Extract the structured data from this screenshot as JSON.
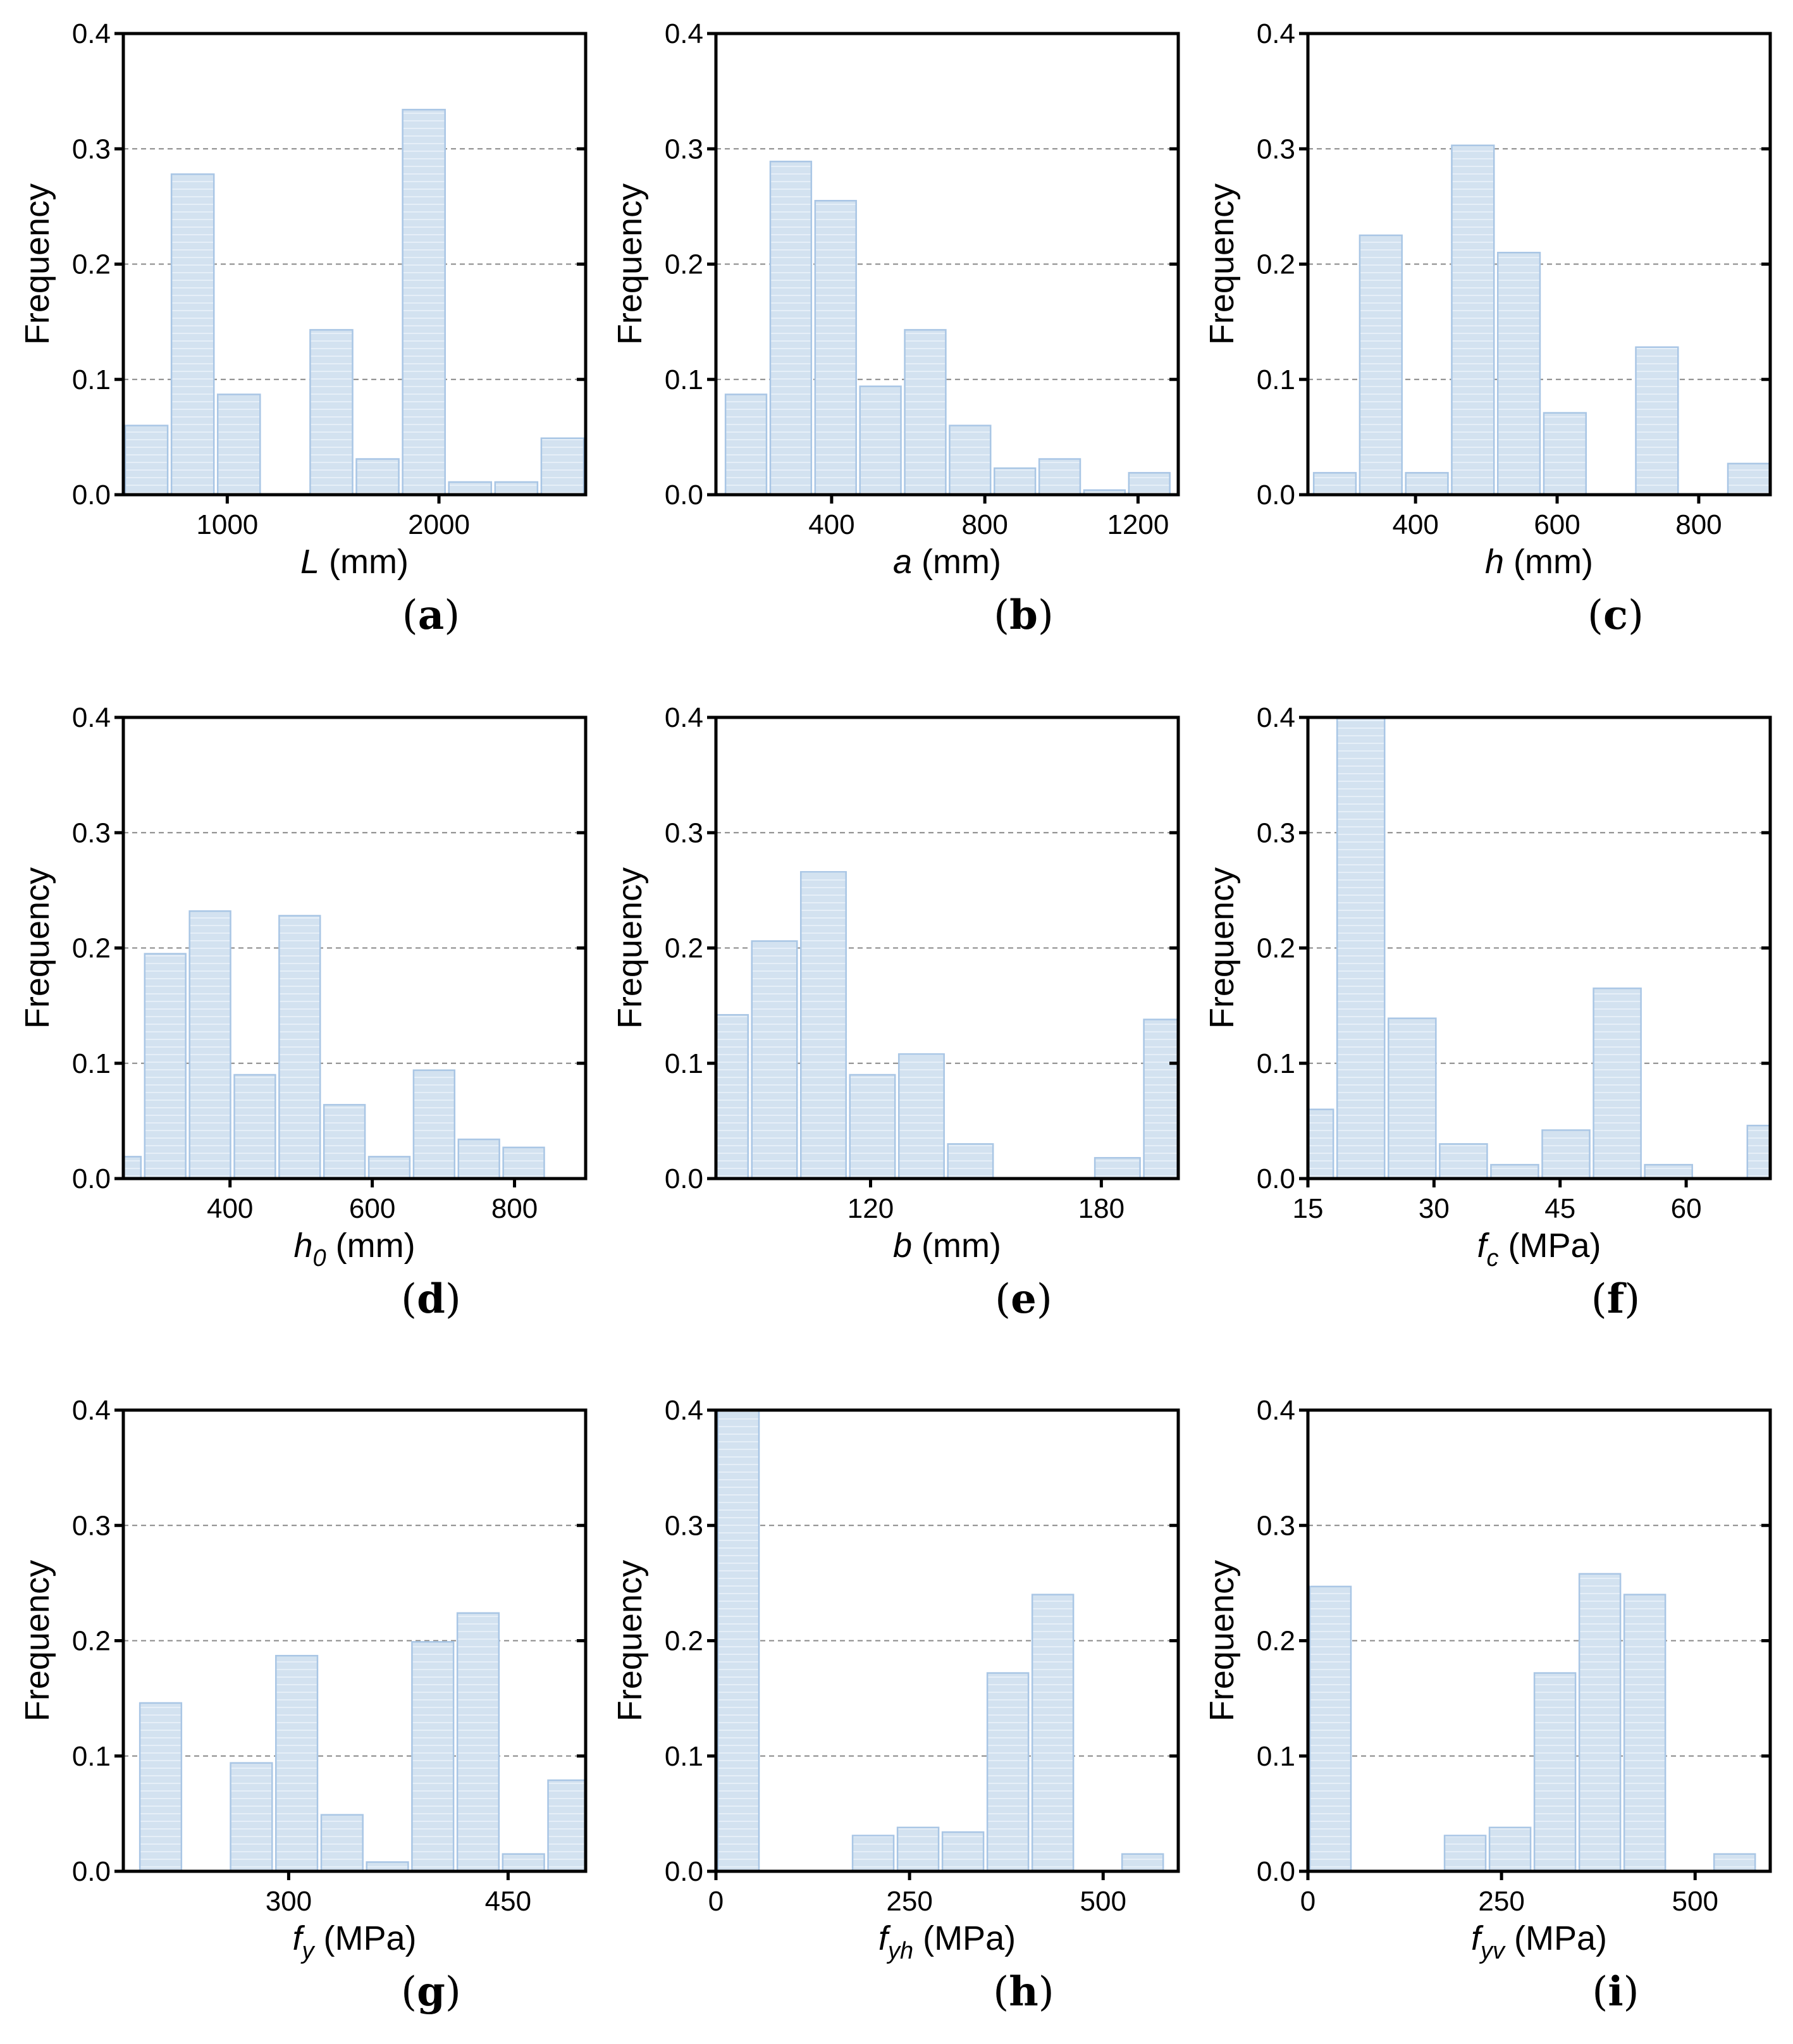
{
  "colors": {
    "bar_fill": "#d3e2f0",
    "bar_stroke": "#a9c6e5",
    "grid": "#888888",
    "axis": "#000000"
  },
  "chart_data": [
    {
      "type": "bar",
      "panel": "a",
      "xvar": "L",
      "xsub": "",
      "xunit": " (mm)",
      "ylabel": "Frequency",
      "xlim": [
        509,
        2693
      ],
      "ylim": [
        0,
        0.4
      ],
      "xticks": [
        1000,
        2000
      ],
      "yticks": [
        0.0,
        0.1,
        0.2,
        0.3,
        0.4
      ],
      "bin_start": 509,
      "bin_width": 218.4,
      "values": [
        0.06,
        0.278,
        0.087,
        0,
        0.143,
        0.031,
        0.334,
        0.011,
        0.011,
        0.049
      ],
      "grid": "horizontal dashed"
    },
    {
      "type": "bar",
      "panel": "b",
      "xvar": "a",
      "xsub": "",
      "xunit": " (mm)",
      "ylabel": "Frequency",
      "xlim": [
        98,
        1305
      ],
      "ylim": [
        0,
        0.4
      ],
      "xticks": [
        400,
        800,
        1200
      ],
      "yticks": [
        0.0,
        0.1,
        0.2,
        0.3,
        0.4
      ],
      "bin_start": 118,
      "bin_width": 117,
      "values": [
        0.087,
        0.289,
        0.255,
        0.094,
        0.143,
        0.06,
        0.023,
        0.031,
        0.004,
        0.019
      ],
      "grid": "horizontal dashed"
    },
    {
      "type": "bar",
      "panel": "c",
      "xvar": "h",
      "xsub": "",
      "xunit": " (mm)",
      "ylabel": "Frequency",
      "xlim": [
        248,
        901
      ],
      "ylim": [
        0,
        0.4
      ],
      "xticks": [
        400,
        600,
        800
      ],
      "yticks": [
        0.0,
        0.1,
        0.2,
        0.3,
        0.4
      ],
      "bin_start": 253.5,
      "bin_width": 65,
      "values": [
        0.019,
        0.225,
        0.019,
        0.303,
        0.21,
        0.071,
        0,
        0.128,
        0,
        0.027
      ],
      "grid": "horizontal dashed"
    },
    {
      "type": "bar",
      "panel": "d",
      "xvar": "h",
      "xsub": "0",
      "xunit": " (mm)",
      "ylabel": "Frequency",
      "xlim": [
        250,
        900
      ],
      "ylim": [
        0,
        0.4
      ],
      "xticks": [
        400,
        600,
        800
      ],
      "yticks": [
        0.0,
        0.1,
        0.2,
        0.3,
        0.4
      ],
      "bin_start": 214.4,
      "bin_width": 63,
      "values": [
        0.019,
        0.195,
        0.232,
        0.09,
        0.228,
        0.064,
        0.019,
        0.094,
        0.034,
        0.027
      ],
      "grid": "horizontal dashed"
    },
    {
      "type": "bar",
      "panel": "e",
      "xvar": "b",
      "xsub": "",
      "xunit": " (mm)",
      "ylabel": "Frequency",
      "xlim": [
        79.8,
        200
      ],
      "ylim": [
        0,
        0.4
      ],
      "xticks": [
        120,
        180
      ],
      "yticks": [
        0.0,
        0.1,
        0.2,
        0.3,
        0.4
      ],
      "bin_start": 75.9,
      "bin_width": 12.74,
      "values": [
        0.142,
        0.206,
        0.266,
        0.09,
        0.108,
        0.03,
        0,
        0,
        0.018,
        0.138
      ],
      "grid": "horizontal dashed"
    },
    {
      "type": "bar",
      "panel": "f",
      "xvar": "f",
      "xsub": "c",
      "xunit": " (MPa)",
      "ylabel": "Frequency",
      "xlim": [
        15,
        70
      ],
      "ylim": [
        0,
        0.4
      ],
      "xticks": [
        15,
        30,
        45,
        60
      ],
      "yticks": [
        0.0,
        0.1,
        0.2,
        0.3,
        0.4
      ],
      "bin_start": 12.15,
      "bin_width": 6.1,
      "values": [
        0.06,
        0.45,
        0.139,
        0.03,
        0.012,
        0.042,
        0.165,
        0.012,
        0,
        0.046
      ],
      "grid": "horizontal dashed"
    },
    {
      "type": "bar",
      "panel": "g",
      "xvar": "f",
      "xsub": "y",
      "xunit": " (MPa)",
      "ylabel": "Frequency",
      "xlim": [
        187,
        503
      ],
      "ylim": [
        0,
        0.4
      ],
      "xticks": [
        300,
        450
      ],
      "yticks": [
        0.0,
        0.1,
        0.2,
        0.3,
        0.4
      ],
      "bin_start": 197,
      "bin_width": 31,
      "values": [
        0.146,
        0,
        0.094,
        0.187,
        0.049,
        0.008,
        0.199,
        0.224,
        0.015,
        0.079
      ],
      "grid": "horizontal dashed"
    },
    {
      "type": "bar",
      "panel": "h",
      "xvar": "f",
      "xsub": "yh",
      "xunit": " (MPa)",
      "ylabel": "Frequency",
      "xlim": [
        0,
        597
      ],
      "ylim": [
        0,
        0.4
      ],
      "xticks": [
        0,
        250,
        500
      ],
      "yticks": [
        0.0,
        0.1,
        0.2,
        0.3,
        0.4
      ],
      "bin_start": 0,
      "bin_width": 58,
      "values": [
        0.45,
        0,
        0,
        0.031,
        0.038,
        0.034,
        0.172,
        0.24,
        0,
        0.015
      ],
      "grid": "horizontal dashed"
    },
    {
      "type": "bar",
      "panel": "i",
      "xvar": "f",
      "xsub": "yv",
      "xunit": " (MPa)",
      "ylabel": "Frequency",
      "xlim": [
        0,
        597
      ],
      "ylim": [
        0,
        0.4
      ],
      "xticks": [
        0,
        250,
        500
      ],
      "yticks": [
        0.0,
        0.1,
        0.2,
        0.3,
        0.4
      ],
      "bin_start": 0,
      "bin_width": 58,
      "values": [
        0.247,
        0,
        0,
        0.031,
        0.038,
        0.172,
        0.258,
        0.24,
        0,
        0.015
      ],
      "grid": "horizontal dashed"
    }
  ]
}
